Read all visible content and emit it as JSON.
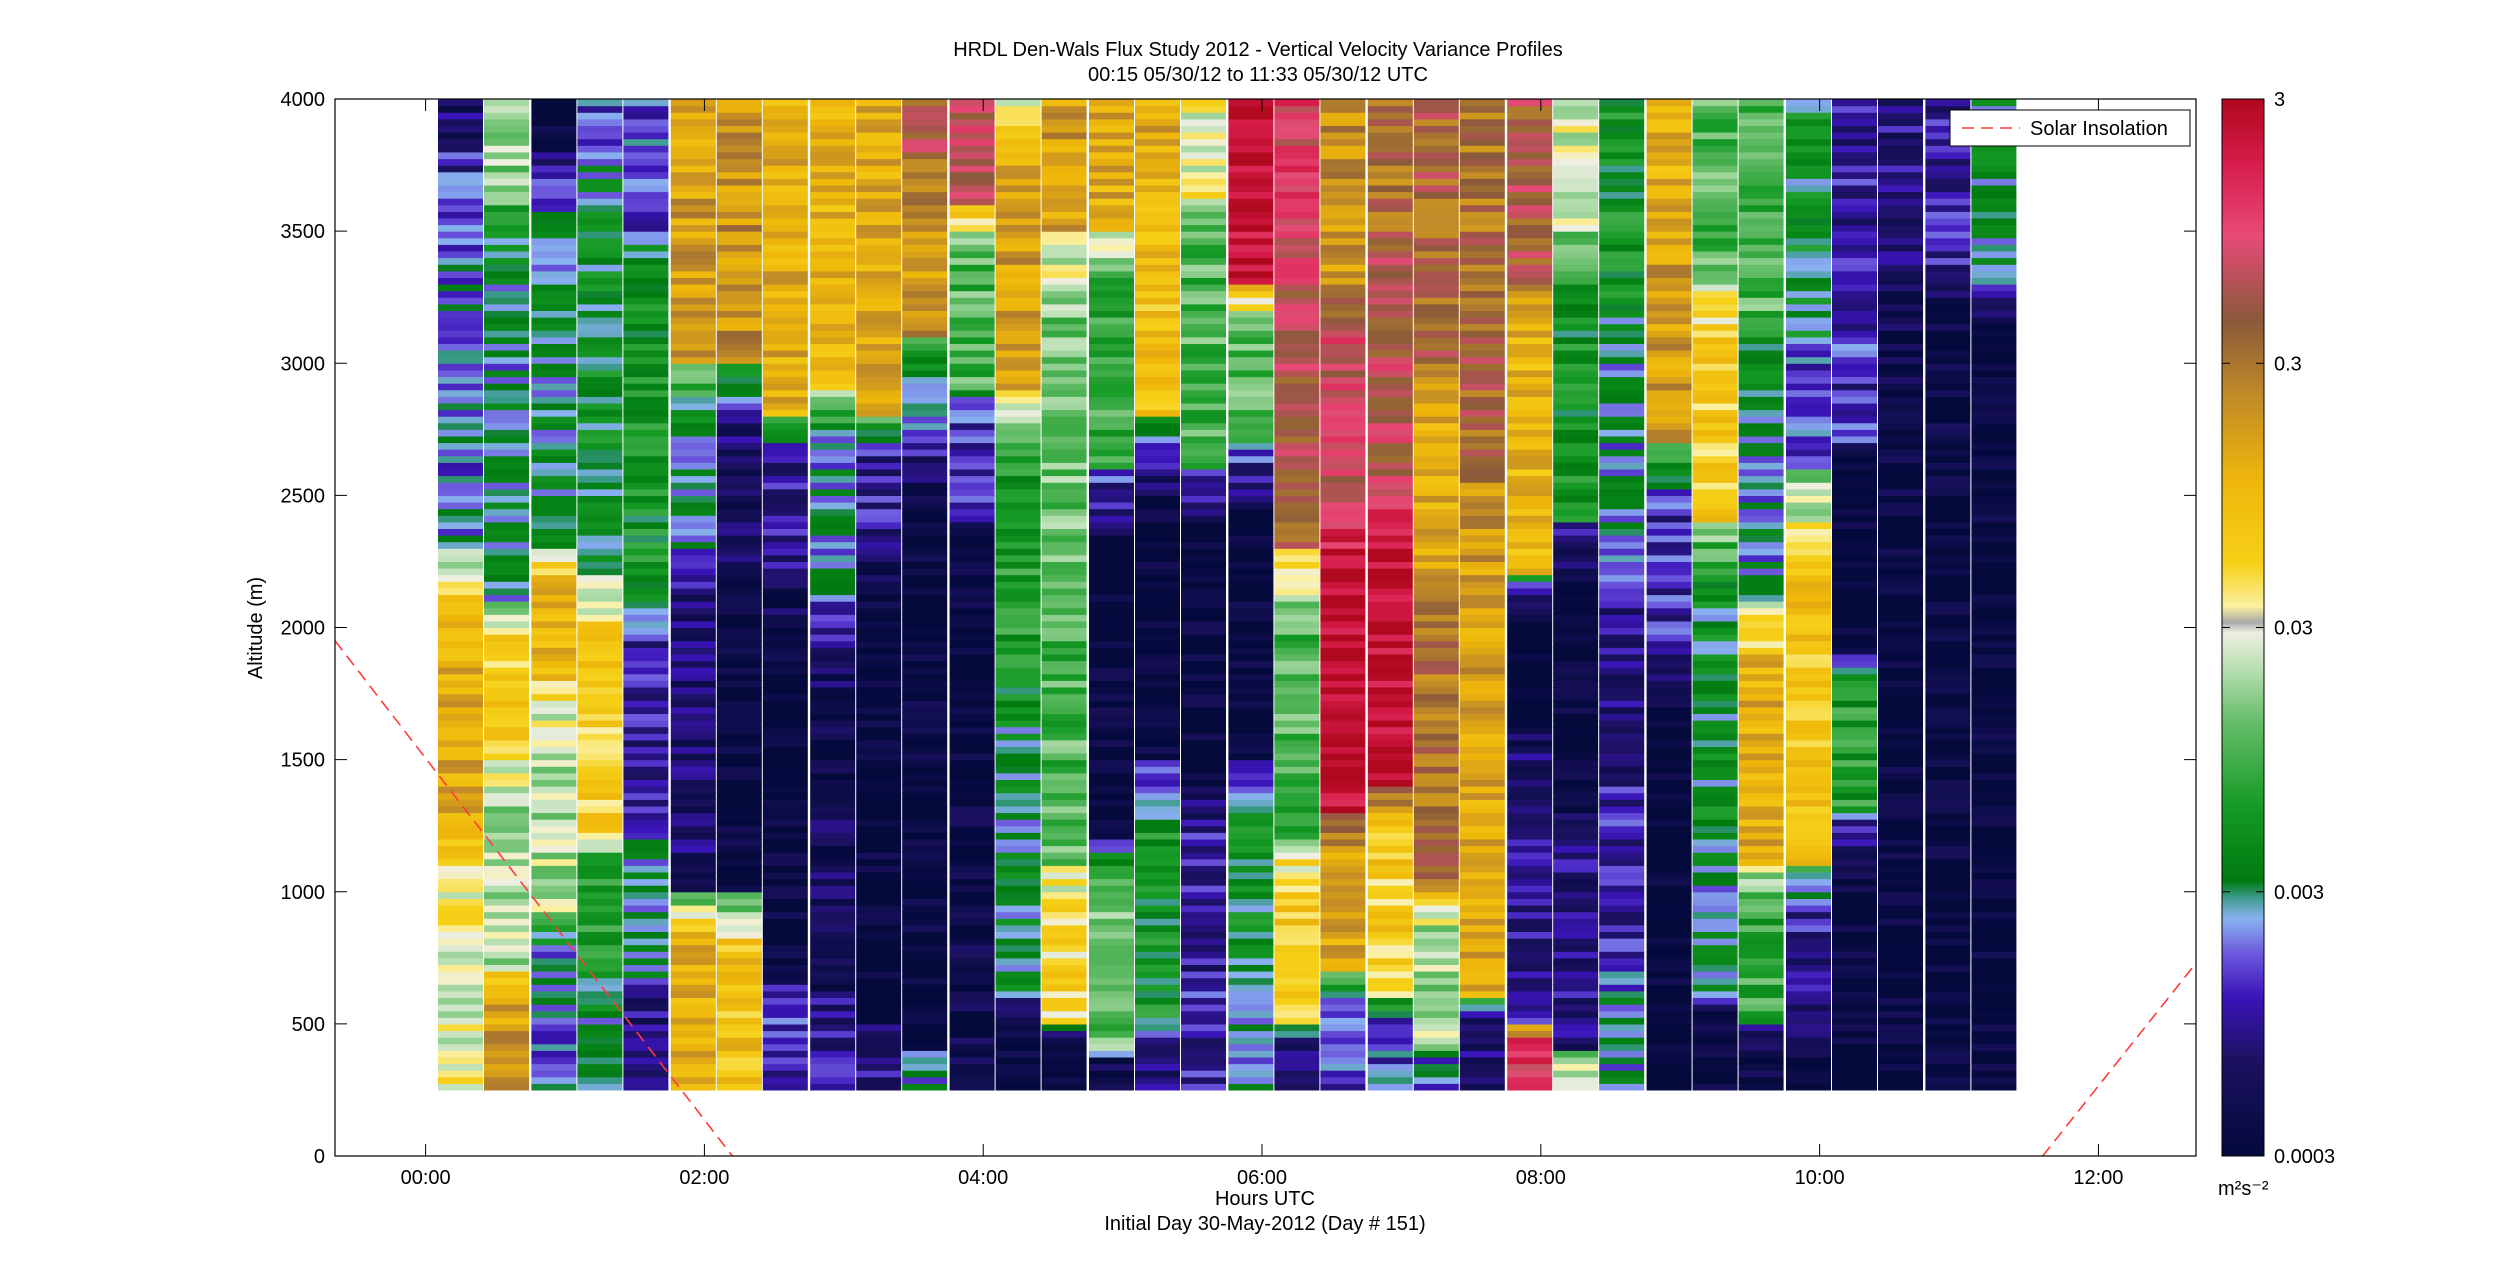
{
  "chart_data": {
    "type": "heatmap",
    "title": "HRDL Den-Wals Flux Study 2012 - Vertical Velocity Variance Profiles",
    "subtitle": "00:15 05/30/12 to 11:33 05/30/12  UTC",
    "xlabel": "Hours UTC",
    "xlabel2": "Initial Day 30-May-2012 (Day # 151)",
    "ylabel": "Altitude (m)",
    "xlim": [
      -0.65,
      12.7
    ],
    "ylim": [
      0,
      4000
    ],
    "xticks": [
      0,
      2,
      4,
      6,
      8,
      10,
      12
    ],
    "xtick_labels": [
      "00:00",
      "02:00",
      "04:00",
      "06:00",
      "08:00",
      "10:00",
      "12:00"
    ],
    "yticks": [
      0,
      500,
      1000,
      1500,
      2000,
      2500,
      3000,
      3500,
      4000
    ],
    "ytick_labels": [
      "0",
      "500",
      "1000",
      "1500",
      "2000",
      "2500",
      "3000",
      "3500",
      "4000"
    ],
    "colorbar": {
      "scale": "log",
      "range": [
        0.0003,
        3
      ],
      "ticks": [
        0.0003,
        0.003,
        0.03,
        0.3,
        3
      ],
      "tick_labels": [
        "0.0003",
        "0.003",
        "0.03",
        "0.3",
        "3"
      ],
      "unit_label": "m²s⁻²"
    },
    "legend": {
      "entries": [
        "Solar Insolation"
      ],
      "placement": "top-right"
    },
    "profile_times_h": [
      0.25,
      0.58,
      0.92,
      1.25,
      1.58,
      1.92,
      2.25,
      2.58,
      2.92,
      3.25,
      3.58,
      3.92,
      4.25,
      4.58,
      4.92,
      5.25,
      5.58,
      5.92,
      6.25,
      6.58,
      6.92,
      7.25,
      7.58,
      7.92,
      8.25,
      8.58,
      8.92,
      9.25,
      9.58,
      9.92,
      10.25,
      10.58,
      10.92,
      11.25
    ],
    "altitude_range_m": [
      250,
      4000
    ],
    "approx_log10_variance": [
      [
        [
          250,
          1200,
          -1.5
        ],
        [
          1200,
          2300,
          -0.9
        ],
        [
          2300,
          3800,
          -2.7
        ],
        [
          3800,
          4000,
          -3.2
        ]
      ],
      [
        [
          250,
          700,
          -0.8
        ],
        [
          700,
          1500,
          -1.7
        ],
        [
          1500,
          2100,
          -1.2
        ],
        [
          2100,
          3600,
          -2.6
        ],
        [
          3600,
          4000,
          -1.8
        ]
      ],
      [
        [
          250,
          900,
          -2.7
        ],
        [
          900,
          1800,
          -1.7
        ],
        [
          1800,
          2300,
          -1.0
        ],
        [
          2300,
          3800,
          -2.5
        ],
        [
          3800,
          4000,
          -3.5
        ]
      ],
      [
        [
          250,
          700,
          -2.5
        ],
        [
          700,
          1200,
          -2.2
        ],
        [
          1200,
          2200,
          -1.2
        ],
        [
          2200,
          3800,
          -2.4
        ],
        [
          3800,
          4000,
          -2.8
        ]
      ],
      [
        [
          250,
          650,
          -3.1
        ],
        [
          650,
          1300,
          -2.6
        ],
        [
          1300,
          2100,
          -3.0
        ],
        [
          2100,
          3500,
          -2.3
        ],
        [
          3500,
          4000,
          -2.8
        ]
      ],
      [
        [
          250,
          1000,
          -0.9
        ],
        [
          1000,
          2300,
          -3.2
        ],
        [
          2300,
          3000,
          -2.5
        ],
        [
          3000,
          4000,
          -0.8
        ]
      ],
      [
        [
          250,
          1000,
          -1.1
        ],
        [
          1000,
          2200,
          -3.5
        ],
        [
          2200,
          3000,
          -3.2
        ],
        [
          3000,
          4000,
          -0.7
        ]
      ],
      [
        [
          250,
          700,
          -2.9
        ],
        [
          700,
          2200,
          -3.5
        ],
        [
          2200,
          2800,
          -3.0
        ],
        [
          2800,
          4000,
          -0.9
        ]
      ],
      [
        [
          250,
          600,
          -3.0
        ],
        [
          600,
          2100,
          -3.3
        ],
        [
          2100,
          2900,
          -2.6
        ],
        [
          2900,
          4000,
          -1.0
        ]
      ],
      [
        [
          250,
          500,
          -3.1
        ],
        [
          500,
          2300,
          -3.5
        ],
        [
          2300,
          2800,
          -3.0
        ],
        [
          2800,
          4000,
          -0.9
        ]
      ],
      [
        [
          250,
          400,
          -2.6
        ],
        [
          400,
          3100,
          -3.5
        ],
        [
          3100,
          3800,
          -0.7
        ],
        [
          3800,
          4000,
          -0.3
        ]
      ],
      [
        [
          250,
          1800,
          -3.4
        ],
        [
          1800,
          2400,
          -3.5
        ],
        [
          2400,
          2900,
          -2.9
        ],
        [
          2900,
          3600,
          -2.0
        ],
        [
          3600,
          4000,
          -0.2
        ]
      ],
      [
        [
          250,
          600,
          -3.4
        ],
        [
          600,
          1800,
          -2.5
        ],
        [
          1800,
          2900,
          -2.2
        ],
        [
          2900,
          3900,
          -0.8
        ],
        [
          3900,
          4000,
          -1.5
        ]
      ],
      [
        [
          250,
          500,
          -3.4
        ],
        [
          500,
          1100,
          -1.3
        ],
        [
          1100,
          2200,
          -2.0
        ],
        [
          2200,
          3500,
          -1.9
        ],
        [
          3500,
          4000,
          -0.8
        ]
      ],
      [
        [
          250,
          400,
          -3.4
        ],
        [
          400,
          1200,
          -1.9
        ],
        [
          1200,
          2600,
          -3.5
        ],
        [
          2600,
          3500,
          -2.1
        ],
        [
          3500,
          4000,
          -0.9
        ]
      ],
      [
        [
          250,
          500,
          -3.1
        ],
        [
          500,
          1500,
          -2.3
        ],
        [
          1500,
          2800,
          -3.5
        ],
        [
          2800,
          3600,
          -1.1
        ],
        [
          3600,
          4000,
          -0.9
        ]
      ],
      [
        [
          250,
          700,
          -2.9
        ],
        [
          700,
          1400,
          -3.0
        ],
        [
          1400,
          2600,
          -3.5
        ],
        [
          2600,
          3600,
          -2.0
        ],
        [
          3600,
          4000,
          -1.5
        ]
      ],
      [
        [
          250,
          700,
          -2.6
        ],
        [
          700,
          1500,
          -2.4
        ],
        [
          1500,
          2700,
          -3.5
        ],
        [
          2700,
          3300,
          -2.0
        ],
        [
          3300,
          4000,
          0.4
        ]
      ],
      [
        [
          250,
          500,
          -3.2
        ],
        [
          500,
          1200,
          -1.2
        ],
        [
          1200,
          2300,
          -2.0
        ],
        [
          2300,
          3300,
          -0.3
        ],
        [
          3300,
          4000,
          0.0
        ]
      ],
      [
        [
          250,
          700,
          -2.8
        ],
        [
          700,
          1300,
          -0.8
        ],
        [
          1300,
          2400,
          0.4
        ],
        [
          2400,
          3300,
          -0.1
        ],
        [
          3300,
          4000,
          -0.7
        ]
      ],
      [
        [
          250,
          600,
          -2.8
        ],
        [
          600,
          1400,
          -1.2
        ],
        [
          1400,
          2500,
          0.4
        ],
        [
          2500,
          3500,
          -0.2
        ],
        [
          3500,
          4000,
          -0.5
        ]
      ],
      [
        [
          250,
          400,
          -2.7
        ],
        [
          400,
          1000,
          -1.7
        ],
        [
          1000,
          2200,
          -0.5
        ],
        [
          2200,
          3000,
          -0.9
        ],
        [
          3000,
          4000,
          -0.4
        ]
      ],
      [
        [
          250,
          600,
          -3.2
        ],
        [
          600,
          1500,
          -0.9
        ],
        [
          1500,
          2600,
          -0.8
        ],
        [
          2600,
          3500,
          -0.4
        ],
        [
          3500,
          4000,
          -0.5
        ]
      ],
      [
        [
          250,
          500,
          0.1
        ],
        [
          500,
          1600,
          -3.0
        ],
        [
          1600,
          2200,
          -3.5
        ],
        [
          2200,
          3300,
          -1.0
        ],
        [
          3300,
          4000,
          -0.3
        ]
      ],
      [
        [
          250,
          400,
          -1.6
        ],
        [
          400,
          1300,
          -3.1
        ],
        [
          1300,
          2400,
          -3.5
        ],
        [
          2400,
          3500,
          -2.3
        ],
        [
          3500,
          4000,
          -1.6
        ]
      ],
      [
        [
          250,
          700,
          -2.6
        ],
        [
          700,
          1400,
          -2.9
        ],
        [
          1400,
          2200,
          -3.1
        ],
        [
          2200,
          3200,
          -2.6
        ],
        [
          3200,
          4000,
          -2.3
        ]
      ],
      [
        [
          250,
          1900,
          -3.5
        ],
        [
          1900,
          2700,
          -2.9
        ],
        [
          2700,
          3700,
          -0.8
        ],
        [
          3700,
          4000,
          -0.9
        ]
      ],
      [
        [
          250,
          600,
          -3.5
        ],
        [
          600,
          1200,
          -2.6
        ],
        [
          1200,
          2400,
          -2.4
        ],
        [
          2400,
          3300,
          -1.2
        ],
        [
          3300,
          4000,
          -2.0
        ]
      ],
      [
        [
          250,
          500,
          -3.4
        ],
        [
          500,
          1100,
          -2.1
        ],
        [
          1100,
          2100,
          -0.9
        ],
        [
          2100,
          3100,
          -2.6
        ],
        [
          3100,
          4000,
          -2.0
        ]
      ],
      [
        [
          250,
          500,
          -3.4
        ],
        [
          500,
          1100,
          -3.0
        ],
        [
          1100,
          2600,
          -1.1
        ],
        [
          2600,
          3100,
          -2.8
        ],
        [
          3100,
          4000,
          -2.4
        ]
      ],
      [
        [
          250,
          1300,
          -3.5
        ],
        [
          1300,
          1900,
          -2.2
        ],
        [
          1900,
          2700,
          -3.5
        ],
        [
          2700,
          3300,
          -2.9
        ],
        [
          3300,
          4000,
          -3.0
        ]
      ],
      [
        [
          250,
          1400,
          -3.5
        ],
        [
          1400,
          2200,
          -3.5
        ],
        [
          2200,
          3300,
          -3.4
        ],
        [
          3300,
          4000,
          -3.1
        ]
      ],
      [
        [
          250,
          1800,
          -3.5
        ],
        [
          1800,
          2600,
          -3.5
        ],
        [
          2600,
          3300,
          -3.4
        ],
        [
          3300,
          4000,
          -3.0
        ]
      ],
      [
        [
          250,
          1500,
          -3.5
        ],
        [
          1500,
          2700,
          -3.5
        ],
        [
          2700,
          3300,
          -3.4
        ],
        [
          3300,
          4000,
          -2.5
        ]
      ]
    ],
    "solar_insolation_curve": [
      [
        -0.65,
        1950
      ],
      [
        2.2,
        0
      ],
      [
        11.6,
        0
      ],
      [
        12.7,
        730
      ]
    ]
  }
}
